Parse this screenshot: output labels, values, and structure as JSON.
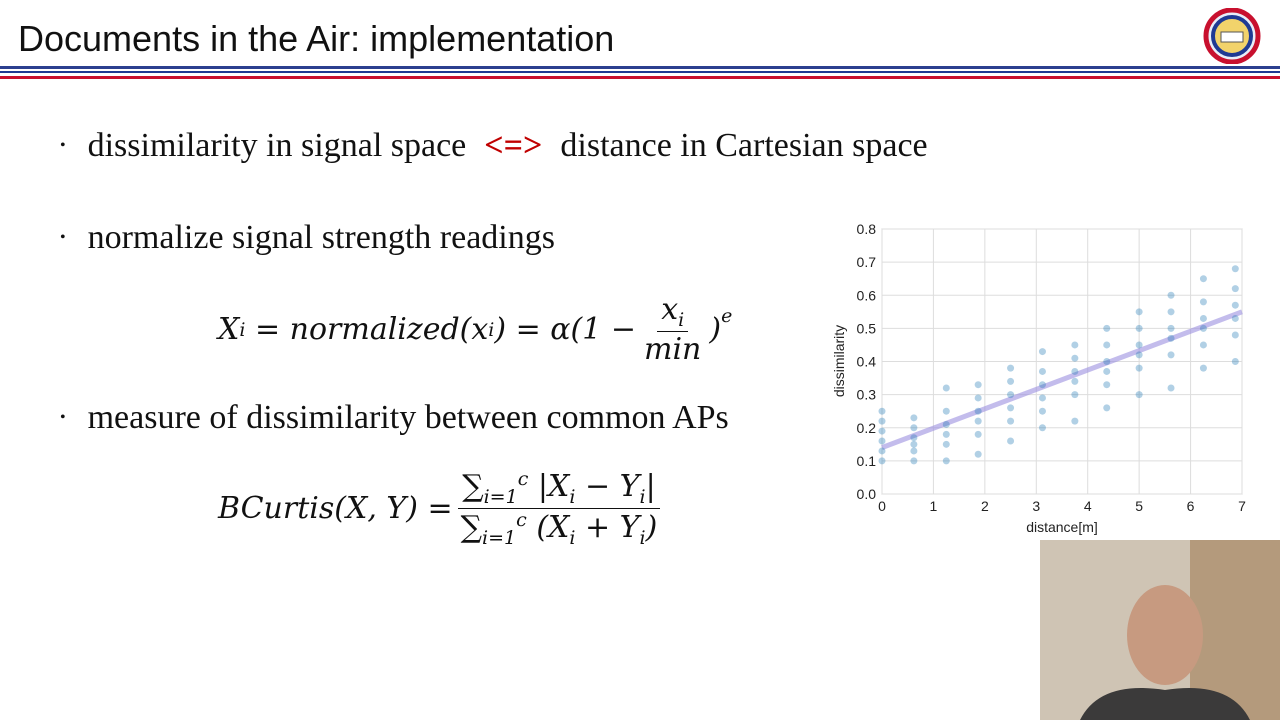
{
  "title": "Documents in the Air: implementation",
  "bullets": [
    {
      "left": "dissimilarity in signal space",
      "arrow": "<=>",
      "right": "distance in Cartesian space"
    },
    {
      "text": "normalize signal strength readings"
    },
    {
      "text": "measure of dissimilarity between common APs"
    }
  ],
  "formula1": {
    "lhs": "X",
    "lhs_sub": "i",
    "mid": "= normalized(x",
    "mid_sub": "i",
    "mid2": ") = α(1 −",
    "num": "x",
    "num_sub": "i",
    "den": "min",
    "close": ")",
    "exp": "e"
  },
  "formula2": {
    "lhs": "BCurtis(X, Y) =",
    "num_sum": "∑",
    "num_from": "i=1",
    "num_to": "c",
    "num_body": "|X",
    "num_sub1": "i",
    "num_body2": "− Y",
    "num_sub2": "i",
    "num_end": "|",
    "den_sum": "∑",
    "den_from": "i=1",
    "den_to": "c",
    "den_body": "(X",
    "den_sub1": "i",
    "den_body2": "+ Y",
    "den_sub2": "i",
    "den_end": ")"
  },
  "chart_data": {
    "type": "scatter",
    "xlabel": "distance[m]",
    "ylabel": "dissimilarity",
    "color": "#1f77b4",
    "grid": true,
    "xlim": [
      0,
      7
    ],
    "ylim": [
      0,
      0.8
    ],
    "xticks": [
      0,
      1,
      2,
      3,
      4,
      5,
      6,
      7
    ],
    "yticks": [
      {
        "value": 0,
        "label": "0.0"
      },
      0.1,
      0.2,
      0.3,
      0.4,
      0.5,
      0.6,
      0.7,
      0.8
    ],
    "x": [
      0,
      0,
      0,
      0,
      0,
      0,
      0.62,
      0.62,
      0.62,
      0.62,
      0.62,
      0.62,
      1.25,
      1.25,
      1.25,
      1.25,
      1.25,
      1.25,
      1.87,
      1.87,
      1.87,
      1.87,
      1.87,
      1.87,
      2.5,
      2.5,
      2.5,
      2.5,
      2.5,
      2.5,
      3.12,
      3.12,
      3.12,
      3.12,
      3.12,
      3.12,
      3.75,
      3.75,
      3.75,
      3.75,
      3.75,
      3.75,
      4.37,
      4.37,
      4.37,
      4.37,
      4.37,
      4.37,
      5,
      5,
      5,
      5,
      5,
      5,
      5.62,
      5.62,
      5.62,
      5.62,
      5.62,
      5.62,
      6.25,
      6.25,
      6.25,
      6.25,
      6.25,
      6.25,
      6.87,
      6.87,
      6.87,
      6.87,
      6.87,
      6.87
    ],
    "values": [
      0.1,
      0.13,
      0.16,
      0.19,
      0.22,
      0.25,
      0.1,
      0.13,
      0.15,
      0.17,
      0.2,
      0.23,
      0.1,
      0.15,
      0.18,
      0.21,
      0.25,
      0.32,
      0.12,
      0.18,
      0.22,
      0.25,
      0.29,
      0.33,
      0.16,
      0.22,
      0.26,
      0.3,
      0.34,
      0.38,
      0.2,
      0.25,
      0.29,
      0.33,
      0.37,
      0.43,
      0.22,
      0.3,
      0.34,
      0.37,
      0.41,
      0.45,
      0.26,
      0.33,
      0.37,
      0.4,
      0.45,
      0.5,
      0.3,
      0.38,
      0.42,
      0.45,
      0.5,
      0.55,
      0.32,
      0.42,
      0.47,
      0.5,
      0.55,
      0.6,
      0.38,
      0.45,
      0.5,
      0.53,
      0.58,
      0.65,
      0.4,
      0.48,
      0.53,
      0.57,
      0.62,
      0.68
    ],
    "trendline": {
      "x": [
        0,
        7
      ],
      "values": [
        0.14,
        0.55
      ],
      "color": "#9b8fe0"
    }
  }
}
